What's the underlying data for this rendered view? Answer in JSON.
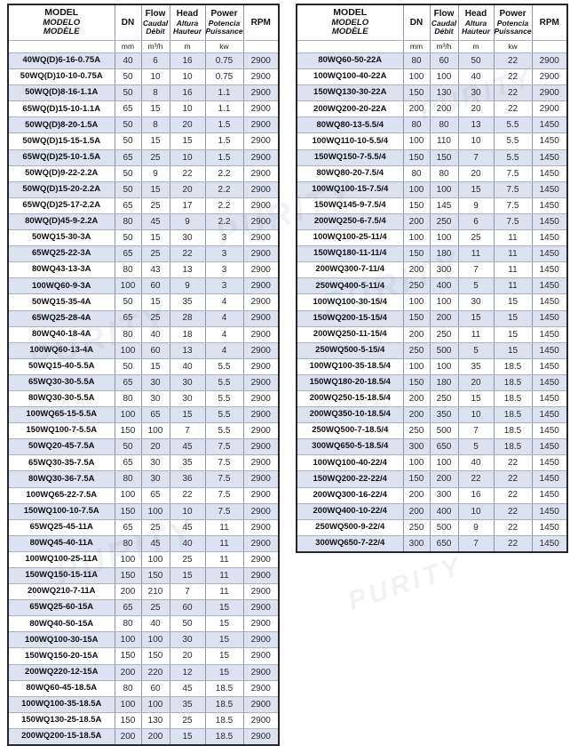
{
  "watermark": {
    "text": "PURITY"
  },
  "columns": {
    "model": {
      "en": "MODEL",
      "es": "MODELO",
      "fr": "MODÈLE",
      "unit": ""
    },
    "dn": {
      "label": "DN",
      "unit": "mm"
    },
    "flow": {
      "en": "Flow",
      "es": "Caudal",
      "fr": "Débit",
      "unit": "m³/h"
    },
    "head": {
      "en": "Head",
      "es": "Altura",
      "fr": "Hauteur",
      "unit": "m"
    },
    "power": {
      "en": "Power",
      "es": "Potencia",
      "fr": "Puissance",
      "unit": "kw"
    },
    "rpm": {
      "label": "RPM",
      "unit": ""
    }
  },
  "colors": {
    "row_alt": "#dce2ef",
    "border_inner": "#8f96a8",
    "border_outer": "#26262b"
  },
  "tables": [
    {
      "rows": [
        [
          "40WQ(D)6-16-0.75A",
          40,
          6,
          16,
          0.75,
          2900
        ],
        [
          "50WQ(D)10-10-0.75A",
          50,
          10,
          10,
          0.75,
          2900
        ],
        [
          "50WQ(D)8-16-1.1A",
          50,
          8,
          16,
          1.1,
          2900
        ],
        [
          "65WQ(D)15-10-1.1A",
          65,
          15,
          10,
          1.1,
          2900
        ],
        [
          "50WQ(D)8-20-1.5A",
          50,
          8,
          20,
          1.5,
          2900
        ],
        [
          "50WQ(D)15-15-1.5A",
          50,
          15,
          15,
          1.5,
          2900
        ],
        [
          "65WQ(D)25-10-1.5A",
          65,
          25,
          10,
          1.5,
          2900
        ],
        [
          "50WQ(D)9-22-2.2A",
          50,
          9,
          22,
          2.2,
          2900
        ],
        [
          "50WQ(D)15-20-2.2A",
          50,
          15,
          20,
          2.2,
          2900
        ],
        [
          "65WQ(D)25-17-2.2A",
          65,
          25,
          17,
          2.2,
          2900
        ],
        [
          "80WQ(D)45-9-2.2A",
          80,
          45,
          9,
          2.2,
          2900
        ],
        [
          "50WQ15-30-3A",
          50,
          15,
          30,
          3,
          2900
        ],
        [
          "65WQ25-22-3A",
          65,
          25,
          22,
          3,
          2900
        ],
        [
          "80WQ43-13-3A",
          80,
          43,
          13,
          3,
          2900
        ],
        [
          "100WQ60-9-3A",
          100,
          60,
          9,
          3,
          2900
        ],
        [
          "50WQ15-35-4A",
          50,
          15,
          35,
          4,
          2900
        ],
        [
          "65WQ25-28-4A",
          65,
          25,
          28,
          4,
          2900
        ],
        [
          "80WQ40-18-4A",
          80,
          40,
          18,
          4,
          2900
        ],
        [
          "100WQ60-13-4A",
          100,
          60,
          13,
          4,
          2900
        ],
        [
          "50WQ15-40-5.5A",
          50,
          15,
          40,
          5.5,
          2900
        ],
        [
          "65WQ30-30-5.5A",
          65,
          30,
          30,
          5.5,
          2900
        ],
        [
          "80WQ30-30-5.5A",
          80,
          30,
          30,
          5.5,
          2900
        ],
        [
          "100WQ65-15-5.5A",
          100,
          65,
          15,
          5.5,
          2900
        ],
        [
          "150WQ100-7-5.5A",
          150,
          100,
          7,
          5.5,
          2900
        ],
        [
          "50WQ20-45-7.5A",
          50,
          20,
          45,
          7.5,
          2900
        ],
        [
          "65WQ30-35-7.5A",
          65,
          30,
          35,
          7.5,
          2900
        ],
        [
          "80WQ30-36-7.5A",
          80,
          30,
          36,
          7.5,
          2900
        ],
        [
          "100WQ65-22-7.5A",
          100,
          65,
          22,
          7.5,
          2900
        ],
        [
          "150WQ100-10-7.5A",
          150,
          100,
          10,
          7.5,
          2900
        ],
        [
          "65WQ25-45-11A",
          65,
          25,
          45,
          11,
          2900
        ],
        [
          "80WQ45-40-11A",
          80,
          45,
          40,
          11,
          2900
        ],
        [
          "100WQ100-25-11A",
          100,
          100,
          25,
          11,
          2900
        ],
        [
          "150WQ150-15-11A",
          150,
          150,
          15,
          11,
          2900
        ],
        [
          "200WQ210-7-11A",
          200,
          210,
          7,
          11,
          2900
        ],
        [
          "65WQ25-60-15A",
          65,
          25,
          60,
          15,
          2900
        ],
        [
          "80WQ40-50-15A",
          80,
          40,
          50,
          15,
          2900
        ],
        [
          "100WQ100-30-15A",
          100,
          100,
          30,
          15,
          2900
        ],
        [
          "150WQ150-20-15A",
          150,
          150,
          20,
          15,
          2900
        ],
        [
          "200WQ220-12-15A",
          200,
          220,
          12,
          15,
          2900
        ],
        [
          "80WQ60-45-18.5A",
          80,
          60,
          45,
          18.5,
          2900
        ],
        [
          "100WQ100-35-18.5A",
          100,
          100,
          35,
          18.5,
          2900
        ],
        [
          "150WQ130-25-18.5A",
          150,
          130,
          25,
          18.5,
          2900
        ],
        [
          "200WQ200-15-18.5A",
          200,
          200,
          15,
          18.5,
          2900
        ]
      ]
    },
    {
      "rows": [
        [
          "80WQ60-50-22A",
          80,
          60,
          50,
          22,
          2900
        ],
        [
          "100WQ100-40-22A",
          100,
          100,
          40,
          22,
          2900
        ],
        [
          "150WQ130-30-22A",
          150,
          130,
          30,
          22,
          2900
        ],
        [
          "200WQ200-20-22A",
          200,
          200,
          20,
          22,
          2900
        ],
        [
          "80WQ80-13-5.5/4",
          80,
          80,
          13,
          5.5,
          1450
        ],
        [
          "100WQ110-10-5.5/4",
          100,
          110,
          10,
          5.5,
          1450
        ],
        [
          "150WQ150-7-5.5/4",
          150,
          150,
          7,
          5.5,
          1450
        ],
        [
          "80WQ80-20-7.5/4",
          80,
          80,
          20,
          7.5,
          1450
        ],
        [
          "100WQ100-15-7.5/4",
          100,
          100,
          15,
          7.5,
          1450
        ],
        [
          "150WQ145-9-7.5/4",
          150,
          145,
          9,
          7.5,
          1450
        ],
        [
          "200WQ250-6-7.5/4",
          200,
          250,
          6,
          7.5,
          1450
        ],
        [
          "100WQ100-25-11/4",
          100,
          100,
          25,
          11,
          1450
        ],
        [
          "150WQ180-11-11/4",
          150,
          180,
          11,
          11,
          1450
        ],
        [
          "200WQ300-7-11/4",
          200,
          300,
          7,
          11,
          1450
        ],
        [
          "250WQ400-5-11/4",
          250,
          400,
          5,
          11,
          1450
        ],
        [
          "100WQ100-30-15/4",
          100,
          100,
          30,
          15,
          1450
        ],
        [
          "150WQ200-15-15/4",
          150,
          200,
          15,
          15,
          1450
        ],
        [
          "200WQ250-11-15/4",
          200,
          250,
          11,
          15,
          1450
        ],
        [
          "250WQ500-5-15/4",
          250,
          500,
          5,
          15,
          1450
        ],
        [
          "100WQ100-35-18.5/4",
          100,
          100,
          35,
          18.5,
          1450
        ],
        [
          "150WQ180-20-18.5/4",
          150,
          180,
          20,
          18.5,
          1450
        ],
        [
          "200WQ250-15-18.5/4",
          200,
          250,
          15,
          18.5,
          1450
        ],
        [
          "200WQ350-10-18.5/4",
          200,
          350,
          10,
          18.5,
          1450
        ],
        [
          "250WQ500-7-18.5/4",
          250,
          500,
          7,
          18.5,
          1450
        ],
        [
          "300WQ650-5-18.5/4",
          300,
          650,
          5,
          18.5,
          1450
        ],
        [
          "100WQ100-40-22/4",
          100,
          100,
          40,
          22,
          1450
        ],
        [
          "150WQ200-22-22/4",
          150,
          200,
          22,
          22,
          1450
        ],
        [
          "200WQ300-16-22/4",
          200,
          300,
          16,
          22,
          1450
        ],
        [
          "200WQ400-10-22/4",
          200,
          400,
          10,
          22,
          1450
        ],
        [
          "250WQ500-9-22/4",
          250,
          500,
          9,
          22,
          1450
        ],
        [
          "300WQ650-7-22/4",
          300,
          650,
          7,
          22,
          1450
        ]
      ]
    }
  ]
}
